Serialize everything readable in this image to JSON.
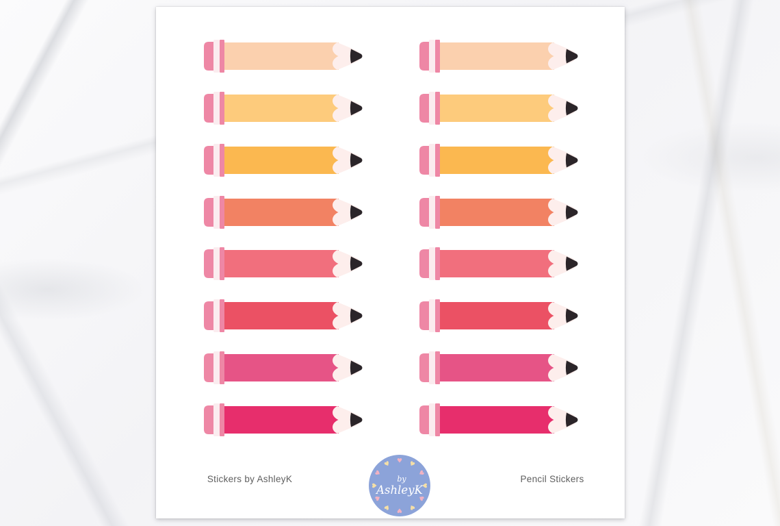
{
  "page": {
    "background": {
      "marble_base": "#f7f7f8",
      "vein_gray": "#b4b8c0",
      "vein_tan": "#beb6a0"
    },
    "sheet": {
      "background": "#ffffff"
    }
  },
  "stickers": {
    "columns": 2,
    "rows": [
      {
        "name": "peach",
        "body_color": "#fbd0ae"
      },
      {
        "name": "light-orange",
        "body_color": "#fdcb7c"
      },
      {
        "name": "orange",
        "body_color": "#fbb850"
      },
      {
        "name": "coral",
        "body_color": "#f28263"
      },
      {
        "name": "salmon-pink",
        "body_color": "#f16f7d"
      },
      {
        "name": "red-pink",
        "body_color": "#eb5164"
      },
      {
        "name": "rose-pink",
        "body_color": "#e65486"
      },
      {
        "name": "magenta-pink",
        "body_color": "#e72e6c"
      }
    ],
    "shared_colors": {
      "eraser": "#ee87a5",
      "ferrule_light": "#fbecef",
      "ferrule_pink": "#ee87a5",
      "wood": "#fdeeec",
      "graphite": "#2b2529"
    }
  },
  "footer": {
    "left_caption": "Stickers by AshleyK",
    "right_caption": "Pencil Stickers",
    "caption_color": "#5e5e5e",
    "logo": {
      "line1": "by",
      "line2": "AshleyK",
      "circle_color": "#8ca3d9",
      "text_color": "#ffffff",
      "heart_colors": [
        "#f2b2c2",
        "#f5dfa6"
      ]
    }
  }
}
